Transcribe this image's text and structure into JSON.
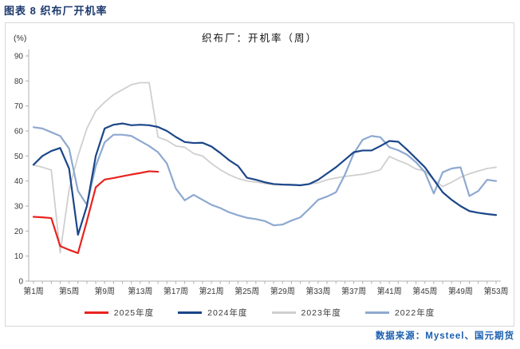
{
  "page": {
    "title": "图表 8 织布厂开机率",
    "source": "数据来源：Mysteel、国元期货"
  },
  "chart_data": {
    "type": "line",
    "title": "织布厂：开机率（周）",
    "unit_label": "(%)",
    "ylim": [
      0,
      90
    ],
    "ytick_step": 10,
    "yticks": [
      0,
      10,
      20,
      30,
      40,
      50,
      60,
      70,
      80,
      90
    ],
    "weeks_max": 53,
    "xtick_weeks": [
      1,
      5,
      9,
      13,
      17,
      21,
      25,
      29,
      33,
      37,
      41,
      45,
      49,
      53
    ],
    "xtick_labels": [
      "第1周",
      "第5周",
      "第9周",
      "第13周",
      "第17周",
      "第21周",
      "第25周",
      "第29周",
      "第33周",
      "第37周",
      "第41周",
      "第45周",
      "第49周",
      "第53周"
    ],
    "grid": false,
    "legend_position": "bottom",
    "axis_color": "#b0b0b0",
    "tick_label_color": "#3a3a3a",
    "series": [
      {
        "name": "2025年度",
        "color": "#e8231f",
        "start_week": 1,
        "values": [
          25.7,
          25.5,
          25.2,
          14.0,
          12.5,
          11.2,
          24.0,
          37.5,
          40.6,
          41.2,
          41.9,
          42.6,
          43.2,
          43.9,
          43.7
        ]
      },
      {
        "name": "2024年度",
        "color": "#1b4689",
        "start_week": 1,
        "values": [
          46.5,
          50.0,
          52.0,
          53.2,
          45.0,
          18.5,
          30.0,
          50.0,
          61.0,
          62.5,
          63.0,
          62.3,
          62.5,
          62.3,
          61.6,
          60.0,
          57.6,
          55.6,
          55.2,
          55.3,
          53.8,
          51.2,
          48.3,
          46.0,
          41.3,
          40.5,
          39.5,
          38.8,
          38.6,
          38.5,
          38.3,
          38.8,
          40.5,
          43.0,
          45.5,
          48.5,
          51.5,
          52.2,
          52.2,
          54.0,
          56.0,
          55.7,
          52.5,
          49.0,
          45.5,
          40.5,
          35.5,
          32.5,
          30.0,
          28.0,
          27.3,
          26.8,
          26.4
        ]
      },
      {
        "name": "2023年度",
        "color": "#cfcfcf",
        "start_week": 1,
        "values": [
          46.4,
          45.5,
          44.4,
          11.3,
          36.5,
          50.0,
          61.0,
          68.0,
          71.5,
          74.5,
          76.5,
          78.5,
          79.3,
          79.3,
          57.5,
          56.2,
          54.0,
          53.5,
          51.0,
          50.0,
          47.0,
          44.5,
          42.5,
          41.0,
          40.0,
          39.6,
          39.0,
          38.6,
          38.4,
          38.3,
          38.4,
          38.8,
          39.3,
          40.5,
          41.2,
          41.8,
          42.3,
          42.7,
          43.5,
          44.5,
          49.8,
          48.2,
          46.8,
          44.8,
          44.0,
          40.5,
          37.8,
          39.5,
          41.5,
          42.9,
          44.0,
          45.0,
          45.5
        ]
      },
      {
        "name": "2022年度",
        "color": "#8ea9d0",
        "start_week": 1,
        "values": [
          61.5,
          61.0,
          59.5,
          58.0,
          53.0,
          36.0,
          30.5,
          46.0,
          55.5,
          58.5,
          58.5,
          58.0,
          56.0,
          54.0,
          51.5,
          47.0,
          37.0,
          32.3,
          34.5,
          32.5,
          30.5,
          29.2,
          27.5,
          26.3,
          25.3,
          24.8,
          24.0,
          22.3,
          22.6,
          24.2,
          25.5,
          28.9,
          32.5,
          33.8,
          35.5,
          42.5,
          51.0,
          56.5,
          58.0,
          57.5,
          53.5,
          52.3,
          50.5,
          47.5,
          43.5,
          35.0,
          43.5,
          45.0,
          45.5,
          34.0,
          36.0,
          40.5,
          40.0
        ]
      }
    ]
  }
}
